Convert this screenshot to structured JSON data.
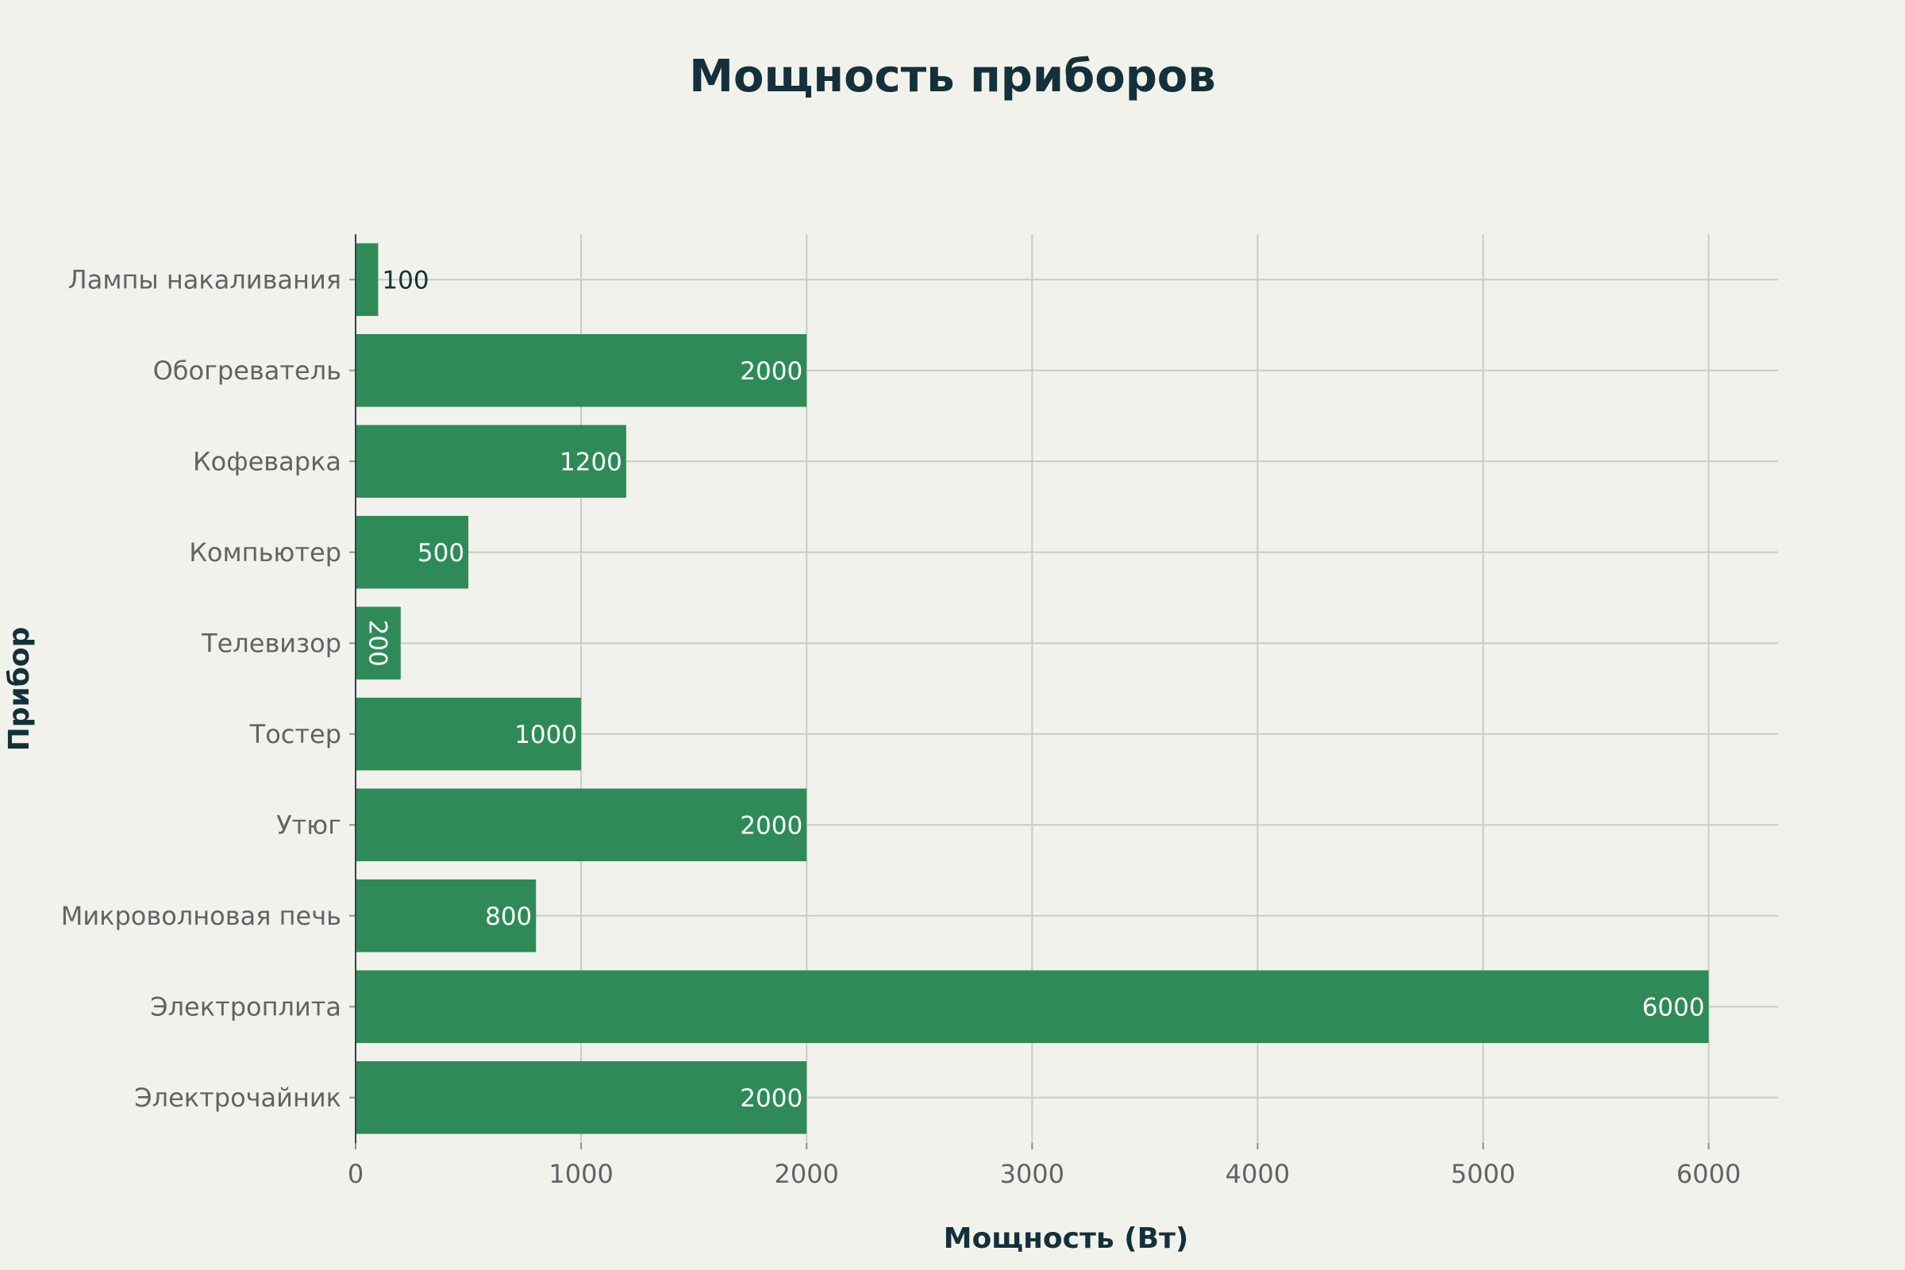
{
  "chart_data": {
    "type": "bar",
    "orientation": "horizontal",
    "title": "Мощность приборов",
    "xlabel": "Мощность (Вт)",
    "ylabel": "Прибор",
    "categories": [
      "Лампы накаливания",
      "Обогреватель",
      "Кофеварка",
      "Компьютер",
      "Телевизор",
      "Тостер",
      "Утюг",
      "Микроволновая печь",
      "Электроплита",
      "Электрочайник"
    ],
    "values": [
      100,
      2000,
      1200,
      500,
      200,
      1000,
      2000,
      800,
      6000,
      2000
    ],
    "xlim": [
      0,
      6300
    ],
    "xticks": [
      0,
      1000,
      2000,
      3000,
      4000,
      5000,
      6000
    ],
    "grid": true,
    "legend": false,
    "colors": {
      "bar": "#2e8b57",
      "label_inside": "#ffffff",
      "label_outside": "#14313a",
      "background": "#f2f2ec"
    }
  }
}
